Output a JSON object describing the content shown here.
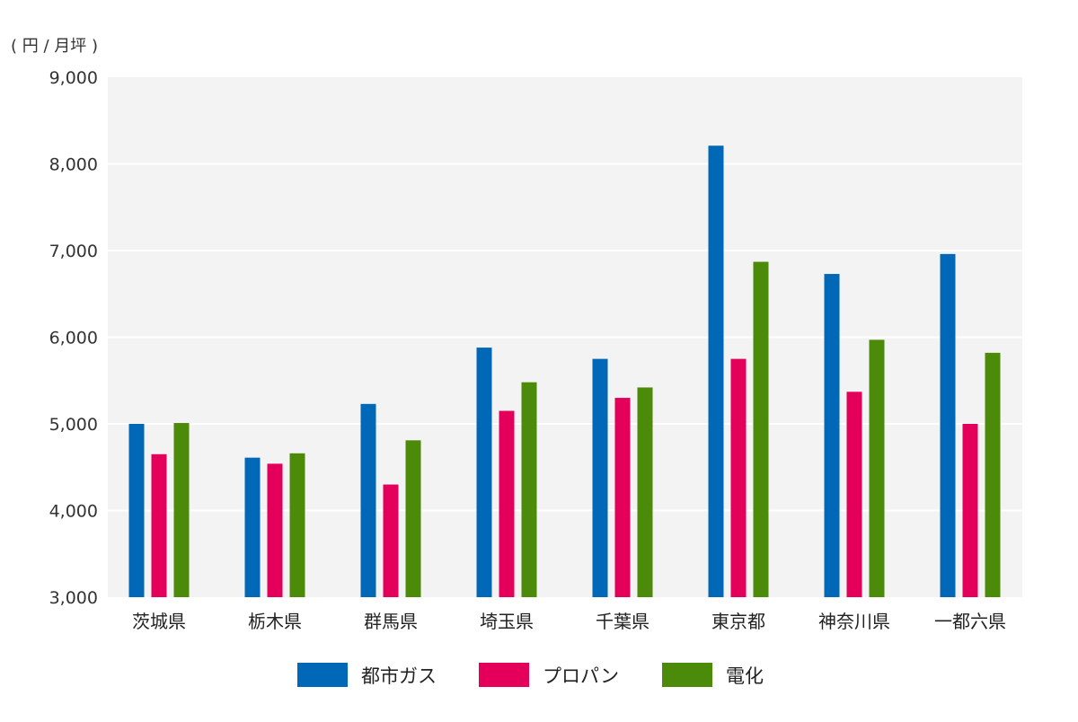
{
  "chart_data": {
    "type": "bar",
    "unit_label": "( 円 / 月坪 )",
    "categories": [
      "茨城県",
      "栃木県",
      "群馬県",
      "埼玉県",
      "千葉県",
      "東京都",
      "神奈川県",
      "一都六県"
    ],
    "series": [
      {
        "name": "都市ガス",
        "color": "#0068b7",
        "values": [
          5000,
          4610,
          5230,
          5880,
          5750,
          8210,
          6730,
          6960
        ]
      },
      {
        "name": "プロパン",
        "color": "#e4005a",
        "values": [
          4650,
          4540,
          4300,
          5150,
          5300,
          5750,
          5370,
          5000
        ]
      },
      {
        "name": "電化",
        "color": "#4c8a0a",
        "values": [
          5010,
          4660,
          4810,
          5480,
          5420,
          6870,
          5970,
          5820
        ]
      }
    ],
    "ylim": [
      3000,
      9000
    ],
    "yticks": [
      3000,
      4000,
      5000,
      6000,
      7000,
      8000,
      9000
    ],
    "ytick_labels": [
      "3,000",
      "4,000",
      "5,000",
      "6,000",
      "7,000",
      "8,000",
      "9,000"
    ],
    "grid": true,
    "legend_position": "bottom-center",
    "xlabel": "",
    "ylabel": ""
  }
}
